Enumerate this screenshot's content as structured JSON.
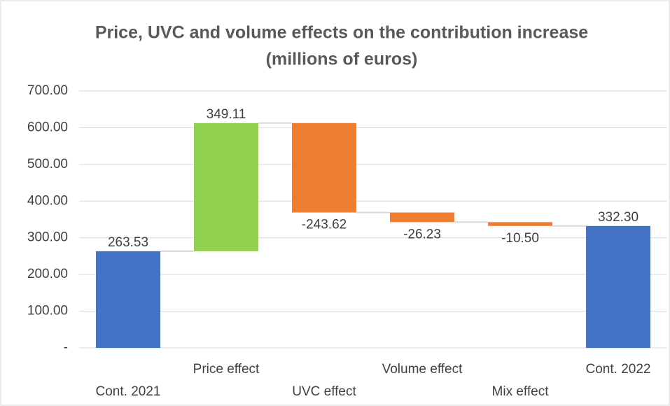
{
  "chart_data": {
    "type": "waterfall",
    "title": "Price, UVC and volume effects on the contribution increase",
    "subtitle": "(millions of euros)",
    "categories": [
      "Cont. 2021",
      "Price effect",
      "UVC effect",
      "Volume effect",
      "Mix effect",
      "Cont. 2022"
    ],
    "values": [
      263.53,
      349.11,
      -243.62,
      -26.23,
      -10.5,
      332.3
    ],
    "value_labels": [
      "263.53",
      "349.11",
      "-243.62",
      "-26.23",
      "-10.50",
      "332.30"
    ],
    "colors": [
      "#4472c4",
      "#92d050",
      "#ed7d31",
      "#ed7d31",
      "#ed7d31",
      "#4472c4"
    ],
    "ylim": [
      0,
      700
    ],
    "yticks": [
      {
        "value": 0,
        "label": "-"
      },
      {
        "value": 100,
        "label": "100.00"
      },
      {
        "value": 200,
        "label": "200.00"
      },
      {
        "value": 300,
        "label": "300.00"
      },
      {
        "value": 400,
        "label": "400.00"
      },
      {
        "value": 500,
        "label": "500.00"
      },
      {
        "value": 600,
        "label": "600.00"
      },
      {
        "value": 700,
        "label": "700.00"
      }
    ],
    "grid": true
  }
}
